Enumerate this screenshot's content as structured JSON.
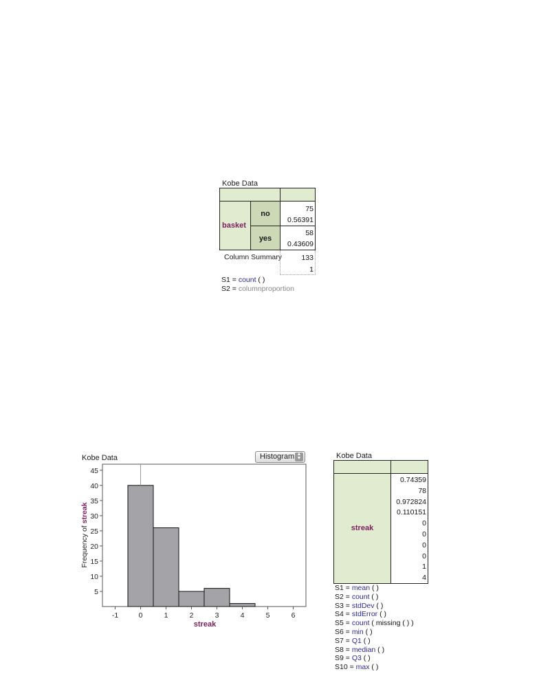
{
  "crosstab": {
    "title": "Kobe Data",
    "row_var": "basket",
    "rows": [
      {
        "label": "no",
        "count": "75",
        "prop": "0.56391"
      },
      {
        "label": "yes",
        "count": "58",
        "prop": "0.43609"
      }
    ],
    "summary_label": "Column Summary",
    "summary_count": "133",
    "summary_prop": "1",
    "legend": [
      {
        "prefix": "S1 = ",
        "fn": "count",
        "rest": " (   )"
      },
      {
        "prefix": "S2 = ",
        "fn": "columnproportion",
        "rest": ""
      }
    ]
  },
  "histogram": {
    "title": "Kobe Data",
    "plot_type": "Histogram",
    "chart_data": {
      "type": "bar",
      "title": "",
      "xlabel": "streak",
      "ylabel_prefix": "Frequency of ",
      "ylabel_var": "streak",
      "bins": [
        {
          "from": -0.5,
          "to": 0.5,
          "count": 40
        },
        {
          "from": 0.5,
          "to": 1.5,
          "count": 26
        },
        {
          "from": 1.5,
          "to": 2.5,
          "count": 5
        },
        {
          "from": 2.5,
          "to": 3.5,
          "count": 6
        },
        {
          "from": 3.5,
          "to": 4.5,
          "count": 1
        }
      ],
      "xlim": [
        -1.5,
        6.5
      ],
      "ylim": [
        0,
        47
      ],
      "xticks": [
        "-1",
        "0",
        "1",
        "2",
        "3",
        "4",
        "5",
        "6"
      ],
      "yticks": [
        "5",
        "10",
        "15",
        "20",
        "25",
        "30",
        "35",
        "40",
        "45"
      ],
      "mean_line": 0
    }
  },
  "summary_table": {
    "title": "Kobe Data",
    "var": "streak",
    "values": [
      "0.74359",
      "78",
      "0.972824",
      "0.110151",
      "0",
      "0",
      "0",
      "0",
      "1",
      "4"
    ],
    "legend": [
      {
        "prefix": "S1 = ",
        "fn": "mean",
        "rest": " (  )"
      },
      {
        "prefix": "S2 = ",
        "fn": "count",
        "rest": " (  )"
      },
      {
        "prefix": "S3 = ",
        "fn": "stdDev",
        "rest": " (  )"
      },
      {
        "prefix": "S4 = ",
        "fn": "stdError",
        "rest": " (  )"
      },
      {
        "prefix": "S5 = ",
        "fn": "count",
        "rest": " ( missing (  ) )"
      },
      {
        "prefix": "S6 = ",
        "fn": "min",
        "rest": " (  )"
      },
      {
        "prefix": "S7 = ",
        "fn": "Q1",
        "rest": " (  )"
      },
      {
        "prefix": "S8 = ",
        "fn": "median",
        "rest": " (  )"
      },
      {
        "prefix": "S9 = ",
        "fn": "Q3",
        "rest": " (  )"
      },
      {
        "prefix": "S10 = ",
        "fn": "max",
        "rest": " (  )"
      }
    ]
  }
}
